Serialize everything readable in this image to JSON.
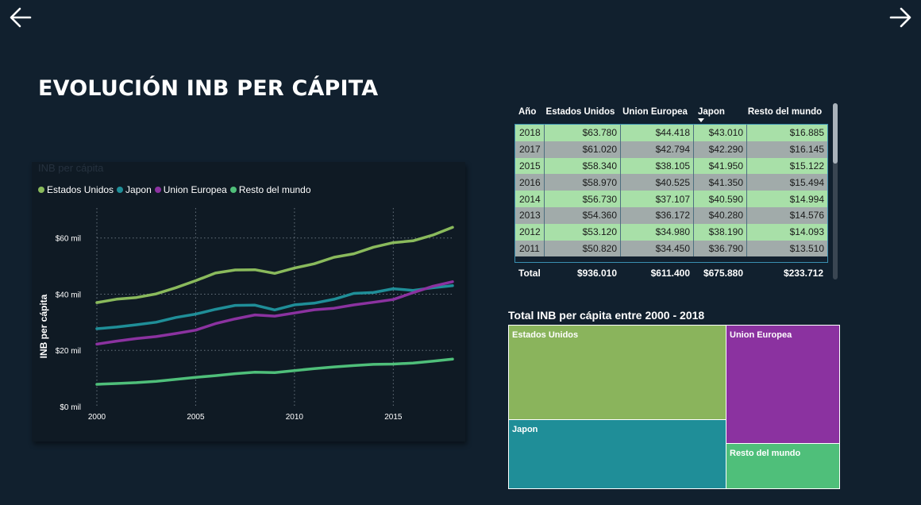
{
  "page": {
    "title": "EVOLUCIÓN INB PER CÁPITA"
  },
  "nav": {
    "back_icon": "arrow-left-icon",
    "forward_icon": "arrow-right-icon"
  },
  "colors": {
    "background": "#11202e",
    "estados_unidos": "#8aba5c",
    "japon": "#1f8e98",
    "union_europea": "#8b32a0",
    "resto_del_mundo": "#4fbf7a"
  },
  "line_chart": {
    "title": "INB per cápita",
    "ylabel": "INB per cápita",
    "legend": [
      "Estados Unidos",
      "Japon",
      "Union Europea",
      "Resto del mundo"
    ],
    "y_ticks": [
      "$0 mil",
      "$20 mil",
      "$40 mil",
      "$60 mil"
    ],
    "x_ticks": [
      "2000",
      "2005",
      "2010",
      "2015"
    ]
  },
  "table": {
    "headers": [
      "Año",
      "Estados Unidos",
      "Union Europea",
      "Japon",
      "Resto del mundo"
    ],
    "rows": [
      [
        "2018",
        "$63.780",
        "$44.418",
        "$43.010",
        "$16.885"
      ],
      [
        "2017",
        "$61.020",
        "$42.794",
        "$42.290",
        "$16.145"
      ],
      [
        "2015",
        "$58.340",
        "$38.105",
        "$41.950",
        "$15.122"
      ],
      [
        "2016",
        "$58.970",
        "$40.525",
        "$41.350",
        "$15.494"
      ],
      [
        "2014",
        "$56.730",
        "$37.107",
        "$40.590",
        "$14.994"
      ],
      [
        "2013",
        "$54.360",
        "$36.172",
        "$40.280",
        "$14.576"
      ],
      [
        "2012",
        "$53.120",
        "$34.980",
        "$38.190",
        "$14.093"
      ],
      [
        "2011",
        "$50.820",
        "$34.450",
        "$36.790",
        "$13.510"
      ]
    ],
    "total": [
      "Total",
      "$936.010",
      "$611.400",
      "$675.880",
      "$233.712"
    ]
  },
  "treemap": {
    "title": "Total INB per cápita entre 2000 - 2018",
    "tiles": [
      "Estados Unidos",
      "Union Europea",
      "Japon",
      "Resto del mundo"
    ]
  },
  "chart_data": [
    {
      "type": "line",
      "title": "INB per cápita",
      "xlabel": "",
      "ylabel": "INB per cápita",
      "ylim": [
        0,
        65000
      ],
      "xlim": [
        2000,
        2018
      ],
      "grid": true,
      "legend_position": "top-left",
      "x": [
        2000,
        2001,
        2002,
        2003,
        2004,
        2005,
        2006,
        2007,
        2008,
        2009,
        2010,
        2011,
        2012,
        2013,
        2014,
        2015,
        2016,
        2017,
        2018
      ],
      "series": [
        {
          "name": "Estados Unidos",
          "color": "#8aba5c",
          "values": [
            37000,
            38200,
            38800,
            40100,
            42300,
            44800,
            47500,
            48600,
            48700,
            47400,
            49300,
            50820,
            53120,
            54360,
            56730,
            58340,
            58970,
            61020,
            63780
          ]
        },
        {
          "name": "Japon",
          "color": "#1f8e98",
          "values": [
            27700,
            28300,
            29100,
            30000,
            31700,
            32900,
            34600,
            36000,
            36100,
            34400,
            36200,
            36790,
            38190,
            40280,
            40590,
            41950,
            41350,
            42290,
            43010
          ]
        },
        {
          "name": "Union Europea",
          "color": "#8b32a0",
          "values": [
            22200,
            23300,
            24200,
            24900,
            26000,
            27200,
            29500,
            31200,
            32600,
            32200,
            33300,
            34450,
            34980,
            36172,
            37107,
            38105,
            40525,
            42794,
            44418
          ]
        },
        {
          "name": "Resto del mundo",
          "color": "#4fbf7a",
          "values": [
            7900,
            8200,
            8500,
            9000,
            9700,
            10400,
            11000,
            11700,
            12200,
            12100,
            12800,
            13510,
            14093,
            14576,
            14994,
            15122,
            15494,
            16145,
            16885
          ]
        }
      ]
    },
    {
      "type": "table",
      "columns": [
        "Año",
        "Estados Unidos",
        "Union Europea",
        "Japon",
        "Resto del mundo"
      ],
      "rows": [
        [
          2018,
          63780,
          44418,
          43010,
          16885
        ],
        [
          2017,
          61020,
          42794,
          42290,
          16145
        ],
        [
          2015,
          58340,
          38105,
          41950,
          15122
        ],
        [
          2016,
          58970,
          40525,
          41350,
          15494
        ],
        [
          2014,
          56730,
          37107,
          40590,
          14994
        ],
        [
          2013,
          54360,
          36172,
          40280,
          14576
        ],
        [
          2012,
          53120,
          34980,
          38190,
          14093
        ],
        [
          2011,
          50820,
          34450,
          36790,
          13510
        ]
      ],
      "total": [
        936010,
        611400,
        675880,
        233712
      ]
    },
    {
      "type": "treemap",
      "title": "Total INB per cápita entre 2000 - 2018",
      "categories": [
        "Estados Unidos",
        "Japon",
        "Union Europea",
        "Resto del mundo"
      ],
      "values": [
        936010,
        675880,
        611400,
        233712
      ]
    }
  ]
}
